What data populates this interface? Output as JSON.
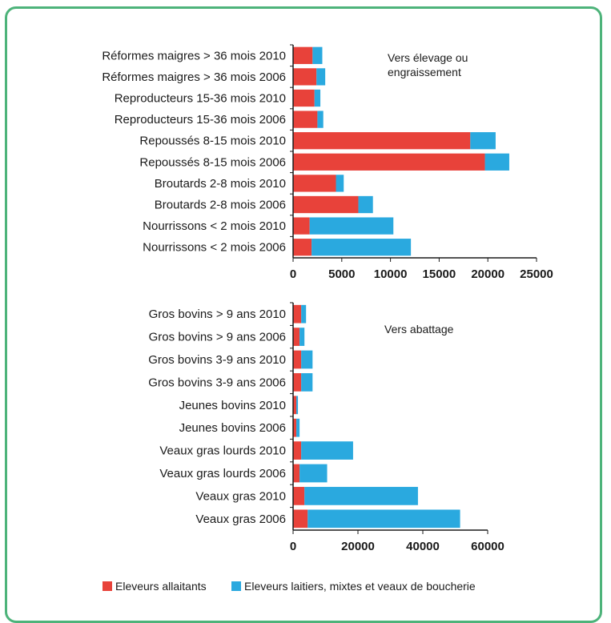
{
  "colors": {
    "allaitants": "#e8423a",
    "laitiers": "#2aa9df",
    "frame": "#4db37a"
  },
  "chart_data": [
    {
      "type": "bar",
      "orientation": "horizontal",
      "stacked": true,
      "annotation_line1": "Vers élevage ou",
      "annotation_line2": "engraissement",
      "categories": [
        "Réformes maigres > 36 mois 2010",
        "Réformes maigres > 36 mois 2006",
        "Reproducteurs 15-36 mois 2010",
        "Reproducteurs 15-36 mois 2006",
        "Repoussés 8-15 mois 2010",
        "Repoussés 8-15 mois 2006",
        "Broutards 2-8 mois 2010",
        "Broutards 2-8 mois 2006",
        "Nourrissons < 2 mois 2010",
        "Nourrissons < 2 mois 2006"
      ],
      "series": [
        {
          "name": "Eleveurs allaitants",
          "values": [
            2000,
            2400,
            2200,
            2500,
            18200,
            19700,
            4400,
            6700,
            1700,
            1900
          ]
        },
        {
          "name": "Eleveurs laitiers, mixtes et veaux de boucherie",
          "values": [
            1000,
            900,
            600,
            600,
            2600,
            2500,
            800,
            1500,
            8600,
            10200
          ]
        }
      ],
      "xlim": [
        0,
        25000
      ],
      "xticks": [
        "0",
        "5000",
        "10000",
        "15000",
        "20000",
        "25000"
      ]
    },
    {
      "type": "bar",
      "orientation": "horizontal",
      "stacked": true,
      "annotation_line1": "Vers abattage",
      "categories": [
        "Gros bovins > 9 ans 2010",
        "Gros bovins > 9 ans 2006",
        "Gros bovins 3-9 ans 2010",
        "Gros bovins 3-9 ans 2006",
        "Jeunes bovins 2010",
        "Jeunes bovins 2006",
        "Veaux gras lourds 2010",
        "Veaux gras lourds 2006",
        "Veaux gras 2010",
        "Veaux gras 2006"
      ],
      "series": [
        {
          "name": "Eleveurs allaitants",
          "values": [
            2500,
            2000,
            2500,
            2500,
            1000,
            1000,
            2500,
            2000,
            3500,
            4500
          ]
        },
        {
          "name": "Eleveurs laitiers, mixtes et veaux de boucherie",
          "values": [
            1500,
            1500,
            3500,
            3500,
            500,
            1000,
            16000,
            8500,
            35000,
            47000
          ]
        }
      ],
      "xlim": [
        0,
        60000
      ],
      "xticks": [
        "0",
        "20000",
        "40000",
        "60000"
      ]
    }
  ],
  "legend": {
    "allaitants_label": "Eleveurs allaitants",
    "laitiers_label": "Eleveurs laitiers, mixtes et veaux de boucherie"
  }
}
